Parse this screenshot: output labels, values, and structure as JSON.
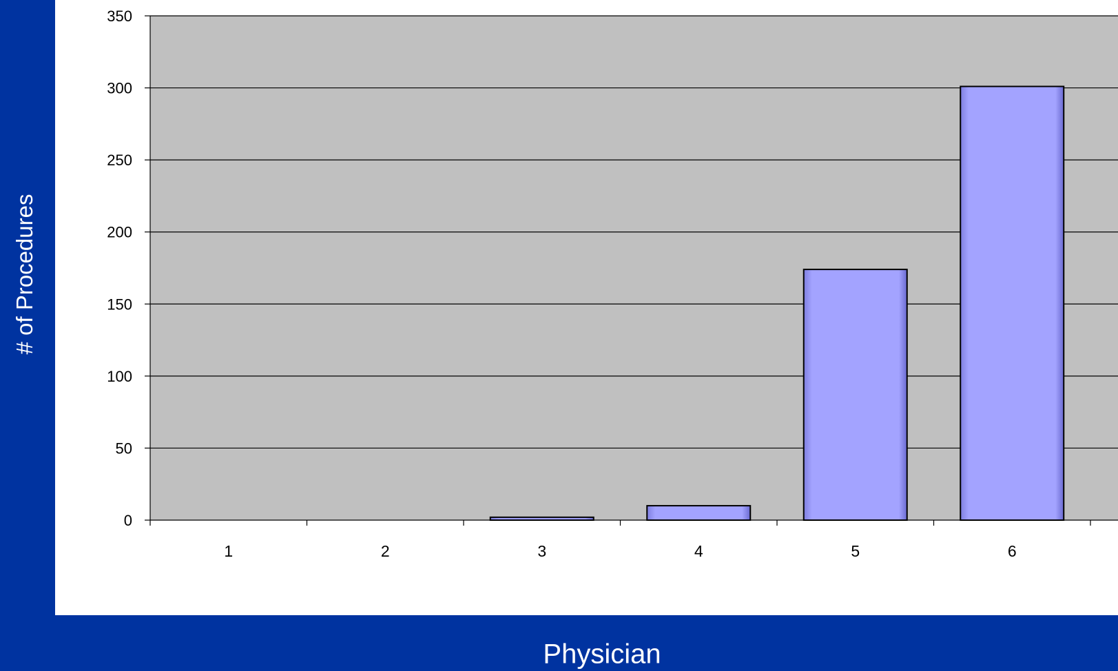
{
  "colors": {
    "background": "#0033a0",
    "panel": "#ffffff",
    "plot_area": "#c0c0c0",
    "bar_fill": "#a3a3ff",
    "bar_edge": "#000000",
    "gridline": "#000000",
    "axis_text": "#000000",
    "label_text": "#ffffff"
  },
  "chart_data": {
    "type": "bar",
    "title": "",
    "xlabel": "Physician",
    "ylabel": "# of Procedures",
    "categories": [
      "1",
      "2",
      "3",
      "4",
      "5",
      "6"
    ],
    "values": [
      0,
      0,
      2,
      10,
      174,
      301
    ],
    "ylim": [
      0,
      350
    ],
    "yticks": [
      0,
      50,
      100,
      150,
      200,
      250,
      300,
      350
    ],
    "grid": true,
    "legend": "none"
  }
}
